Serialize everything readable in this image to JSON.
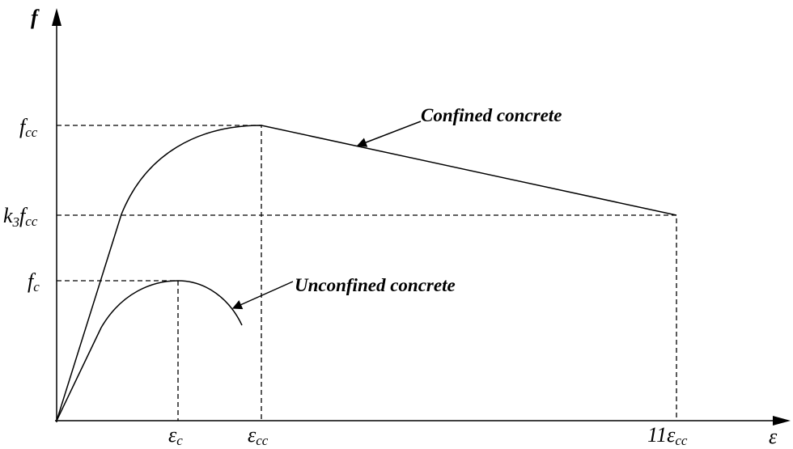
{
  "axes": {
    "y": "f",
    "x": "ε"
  },
  "y_labels": [
    {
      "text": "f",
      "sub": "cc"
    },
    {
      "coef": "k",
      "coef_sub": "3",
      "text": "f",
      "sub": "cc"
    },
    {
      "text": "f",
      "sub": "c"
    }
  ],
  "x_labels": [
    {
      "text": "ε",
      "sub": "c"
    },
    {
      "text": "ε",
      "sub": "cc"
    },
    {
      "coef": "11",
      "text": "ε",
      "sub": "cc"
    }
  ],
  "curves": [
    "Confined concrete",
    "Unconfined concrete"
  ]
}
